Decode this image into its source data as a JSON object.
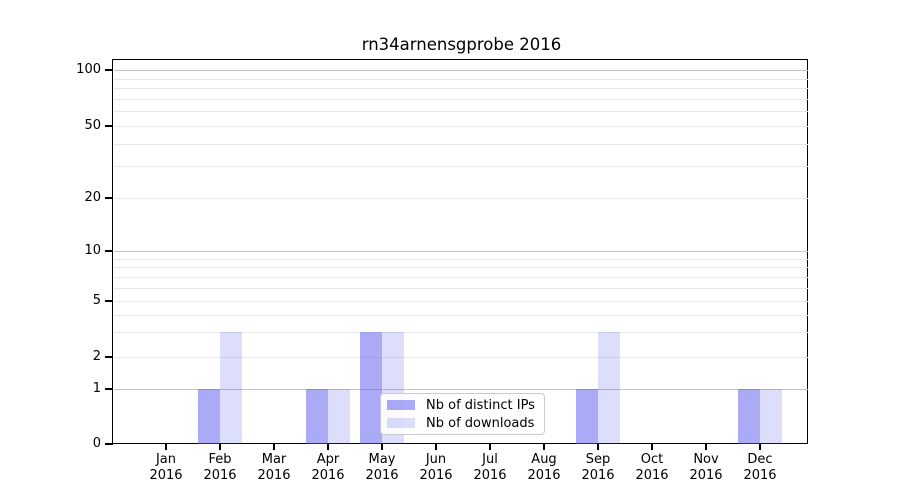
{
  "chart_data": {
    "type": "bar",
    "title": "rn34arnensgprobe 2016",
    "categories": [
      "Jan\n2016",
      "Feb\n2016",
      "Mar\n2016",
      "Apr\n2016",
      "May\n2016",
      "Jun\n2016",
      "Jul\n2016",
      "Aug\n2016",
      "Sep\n2016",
      "Oct\n2016",
      "Nov\n2016",
      "Dec\n2016"
    ],
    "series": [
      {
        "name": "Nb of distinct IPs",
        "color": "rgba(85,85,238,0.5)",
        "values": [
          0,
          1,
          0,
          1,
          3,
          0,
          0,
          0,
          1,
          0,
          0,
          1
        ]
      },
      {
        "name": "Nb of downloads",
        "color": "rgba(85,85,238,0.2)",
        "values": [
          0,
          3,
          0,
          1,
          3,
          0,
          0,
          0,
          3,
          0,
          0,
          1
        ]
      }
    ],
    "yscale": "symlog",
    "yticks": [
      0,
      1,
      2,
      5,
      10,
      20,
      50,
      100
    ],
    "ylim": [
      0,
      115
    ],
    "xlabel": "",
    "ylabel": "",
    "grid": true,
    "legend": {
      "position": "lower-center-inside"
    }
  }
}
